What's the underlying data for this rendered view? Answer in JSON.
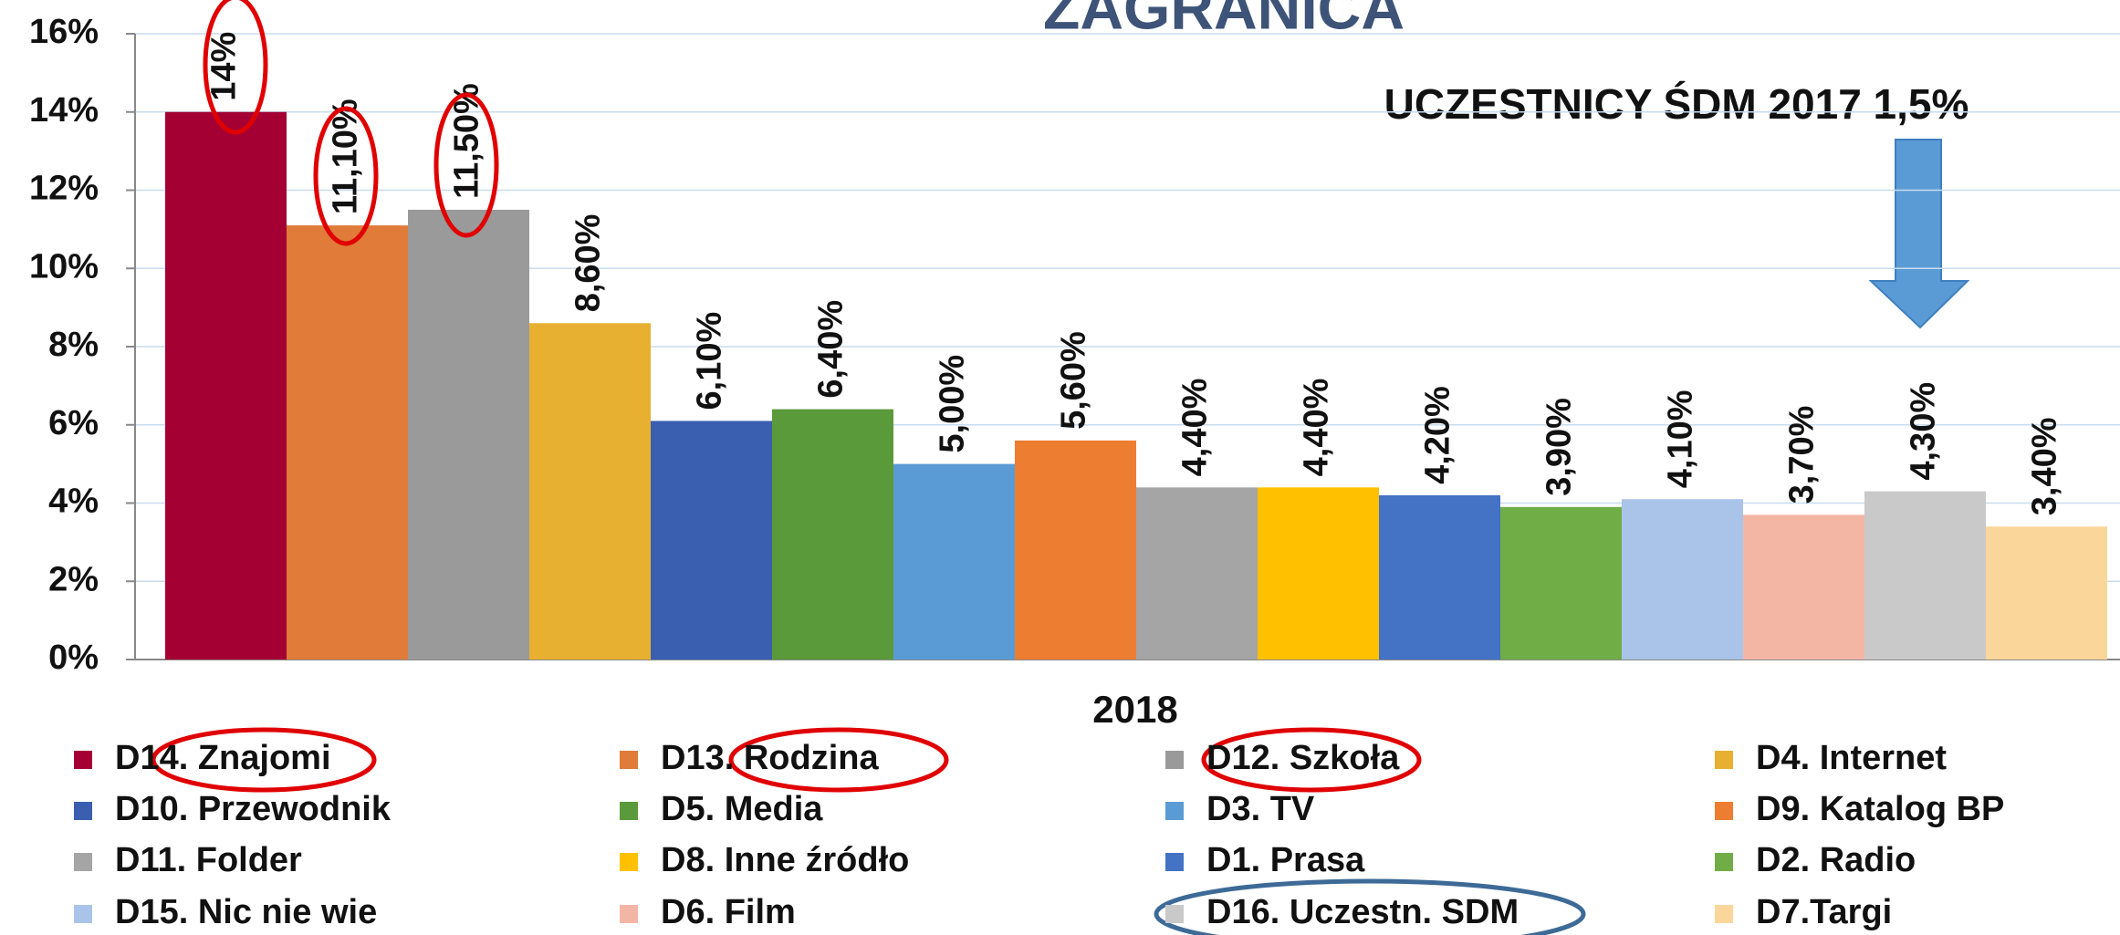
{
  "chart_data": {
    "type": "bar",
    "title": "ZAGRANICA",
    "annotation": "UCZESTNICY ŚDM   2017  1,5%",
    "categories": [
      "2018"
    ],
    "ylim": [
      0,
      16
    ],
    "yticks": [
      {
        "value": 0,
        "label": "0%"
      },
      {
        "value": 2,
        "label": "2%"
      },
      {
        "value": 4,
        "label": "4%"
      },
      {
        "value": 6,
        "label": "6%"
      },
      {
        "value": 8,
        "label": "8%"
      },
      {
        "value": 10,
        "label": "10%"
      },
      {
        "value": 12,
        "label": "12%"
      },
      {
        "value": 14,
        "label": "14%"
      },
      {
        "value": 16,
        "label": "16%"
      }
    ],
    "grid": true,
    "series": [
      {
        "name": "D14. Znajomi",
        "color": "#a50034",
        "values": [
          14
        ],
        "value_labels": [
          "14%"
        ]
      },
      {
        "name": "D13. Rodzina",
        "color": "#e07b39",
        "values": [
          11.1
        ],
        "value_labels": [
          "11,10%"
        ]
      },
      {
        "name": "D12. Szkoła",
        "color": "#9a9a9a",
        "values": [
          11.5
        ],
        "value_labels": [
          "11,50%"
        ]
      },
      {
        "name": "D4. Internet",
        "color": "#e8b030",
        "values": [
          8.6
        ],
        "value_labels": [
          "8,60%"
        ]
      },
      {
        "name": "D10. Przewodnik",
        "color": "#3a5fb0",
        "values": [
          6.1
        ],
        "value_labels": [
          "6,10%"
        ]
      },
      {
        "name": "D5. Media",
        "color": "#5a9a3a",
        "values": [
          6.4
        ],
        "value_labels": [
          "6,40%"
        ]
      },
      {
        "name": "D3. TV",
        "color": "#5b9bd5",
        "values": [
          5.0
        ],
        "value_labels": [
          "5,00%"
        ]
      },
      {
        "name": "D9. Katalog BP",
        "color": "#ed7d31",
        "values": [
          5.6
        ],
        "value_labels": [
          "5,60%"
        ]
      },
      {
        "name": "D11. Folder",
        "color": "#a5a5a5",
        "values": [
          4.4
        ],
        "value_labels": [
          "4,40%"
        ]
      },
      {
        "name": "D8. Inne źródło",
        "color": "#ffc000",
        "values": [
          4.4
        ],
        "value_labels": [
          "4,40%"
        ]
      },
      {
        "name": "D1. Prasa",
        "color": "#4472c4",
        "values": [
          4.2
        ],
        "value_labels": [
          "4,20%"
        ]
      },
      {
        "name": "D2. Radio",
        "color": "#70ad47",
        "values": [
          3.9
        ],
        "value_labels": [
          "3,90%"
        ]
      },
      {
        "name": "D15. Nic nie wie",
        "color": "#a9c4e8",
        "values": [
          4.1
        ],
        "value_labels": [
          "4,10%"
        ]
      },
      {
        "name": "D6. Film",
        "color": "#f4b6a4",
        "values": [
          3.7
        ],
        "value_labels": [
          "3,70%"
        ]
      },
      {
        "name": "D16. Uczestn. SDM",
        "color": "#c9c9c9",
        "values": [
          4.3
        ],
        "value_labels": [
          "4,30%"
        ]
      },
      {
        "name": "D7.Targi",
        "color": "#fbd69a",
        "values": [
          3.4
        ],
        "value_labels": [
          "3,40%"
        ]
      }
    ]
  }
}
